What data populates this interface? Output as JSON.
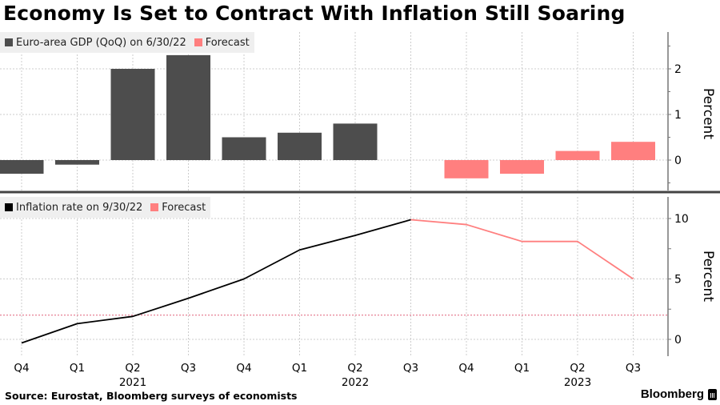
{
  "title": "Economy Is Set to Contract With Inflation Still Soaring",
  "source": "Source: Eurostat, Bloomberg surveys of economists",
  "brand": "Bloomberg",
  "colors": {
    "actual_bar": "#4d4d4d",
    "forecast": "#ff7f7f",
    "actual_line": "#000000",
    "target_line": "#e0607a",
    "grid": "#cccccc",
    "axis": "#777777",
    "divider": "#444444"
  },
  "x_axis": {
    "quarters": [
      "Q4",
      "Q1",
      "Q2",
      "Q3",
      "Q4",
      "Q1",
      "Q2",
      "Q3",
      "Q4",
      "Q1",
      "Q2",
      "Q3"
    ],
    "years": [
      {
        "label": "2021",
        "index": 2
      },
      {
        "label": "2022",
        "index": 6
      },
      {
        "label": "2023",
        "index": 10
      }
    ]
  },
  "chart_data": [
    {
      "type": "bar",
      "title": "Euro-area GDP (QoQ)",
      "ylabel": "Percent",
      "ylim": [
        -0.6,
        2.8
      ],
      "yticks": [
        0,
        1,
        2
      ],
      "grid": true,
      "legend_position": "top-left",
      "categories": [
        "Q4 2020",
        "Q1 2021",
        "Q2 2021",
        "Q3 2021",
        "Q4 2021",
        "Q1 2022",
        "Q2 2022",
        "Q3 2022",
        "Q4 2022",
        "Q1 2023",
        "Q2 2023",
        "Q3 2023"
      ],
      "legend": [
        {
          "label": "Euro-area GDP (QoQ) on 6/30/22",
          "color": "#4d4d4d"
        },
        {
          "label": "Forecast",
          "color": "#ff7f7f"
        }
      ],
      "series": [
        {
          "name": "Euro-area GDP (QoQ) on 6/30/22",
          "values": [
            -0.3,
            -0.1,
            2.0,
            2.3,
            0.5,
            0.6,
            0.8,
            null,
            null,
            null,
            null,
            null
          ]
        },
        {
          "name": "Forecast",
          "values": [
            null,
            null,
            null,
            null,
            null,
            null,
            null,
            null,
            -0.4,
            -0.3,
            0.2,
            0.4
          ]
        }
      ]
    },
    {
      "type": "line",
      "title": "Inflation rate",
      "ylabel": "Percent",
      "ylim": [
        -1.5,
        11.5
      ],
      "yticks": [
        0,
        5,
        10
      ],
      "grid": true,
      "legend_position": "top-left",
      "categories": [
        "Q4 2020",
        "Q1 2021",
        "Q2 2021",
        "Q3 2021",
        "Q4 2021",
        "Q1 2022",
        "Q2 2022",
        "Q3 2022",
        "Q4 2022",
        "Q1 2023",
        "Q2 2023",
        "Q3 2023"
      ],
      "legend": [
        {
          "label": "Inflation rate on 9/30/22",
          "color": "#000000"
        },
        {
          "label": "Forecast",
          "color": "#ff7f7f"
        }
      ],
      "series": [
        {
          "name": "Inflation rate on 9/30/22",
          "values": [
            -0.3,
            1.3,
            1.9,
            3.4,
            5.0,
            7.4,
            8.6,
            9.9,
            null,
            null,
            null,
            null
          ]
        },
        {
          "name": "Forecast",
          "values": [
            null,
            null,
            null,
            null,
            null,
            null,
            null,
            9.9,
            9.5,
            8.1,
            8.1,
            5.0
          ]
        }
      ],
      "reference_line": {
        "value": 2,
        "style": "dashed"
      }
    }
  ]
}
